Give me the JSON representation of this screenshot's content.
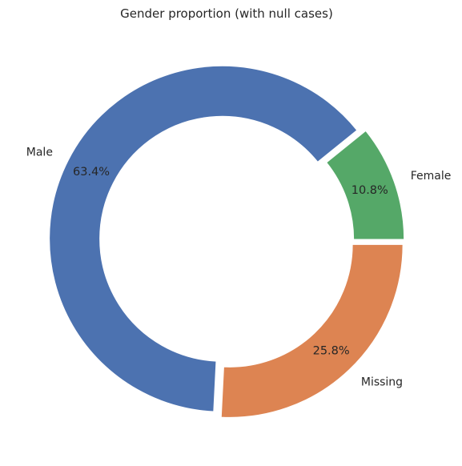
{
  "chart_data": {
    "type": "pie",
    "title": "Gender proportion (with null cases)",
    "categories": [
      "Female",
      "Male",
      "Missing"
    ],
    "values": [
      10.8,
      63.4,
      25.8
    ],
    "value_labels": [
      "10.8%",
      "63.4%",
      "25.8%"
    ],
    "colors": [
      "#55a868",
      "#4c72b0",
      "#dd8452"
    ],
    "donut": true,
    "start_angle_deg": 0,
    "direction": "counterclockwise",
    "exploded": true,
    "legend": "none",
    "grid": false
  }
}
